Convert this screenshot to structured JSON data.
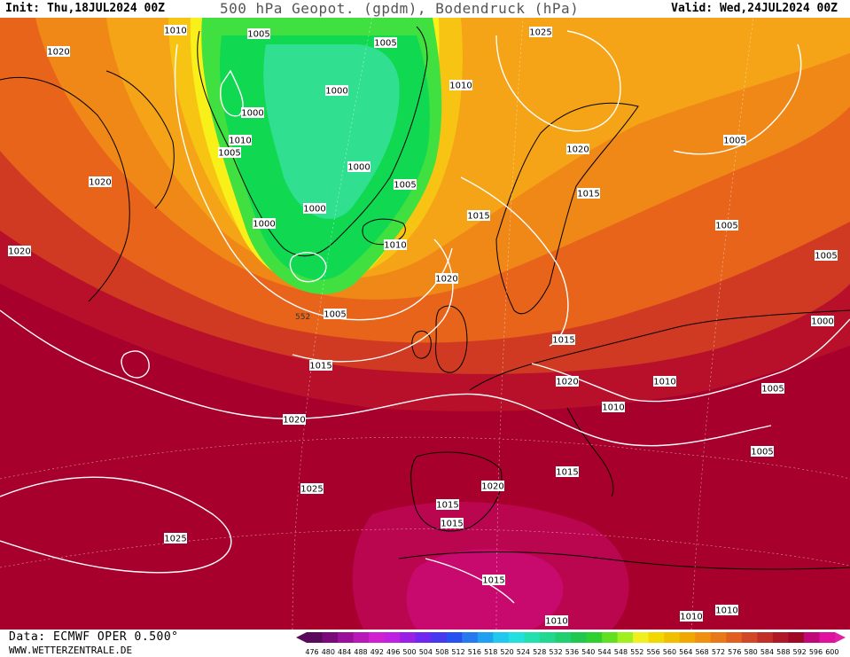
{
  "header": {
    "init": "Init: Thu,18JUL2024 00Z",
    "title": "500 hPa Geopot. (gpdm), Bodendruck (hPa)",
    "valid": "Valid: Wed,24JUL2024 00Z"
  },
  "footer": {
    "data_source": "Data: ECMWF OPER 0.500°",
    "website": "WWW.WETTERZENTRALE.DE"
  },
  "colorbar": {
    "ticks": [
      "476",
      "480",
      "484",
      "488",
      "492",
      "496",
      "500",
      "504",
      "508",
      "512",
      "516",
      "518",
      "520",
      "524",
      "528",
      "532",
      "536",
      "540",
      "544",
      "548",
      "552",
      "556",
      "560",
      "564",
      "568",
      "572",
      "576",
      "580",
      "584",
      "588",
      "592",
      "596",
      "600"
    ],
    "colors": [
      "#5a0a5a",
      "#7a0a7a",
      "#9a109a",
      "#b818b8",
      "#d020d0",
      "#c020e0",
      "#9a20e8",
      "#7028f0",
      "#4838f0",
      "#2850f0",
      "#2878f0",
      "#20a0f0",
      "#20c8f0",
      "#20e0e0",
      "#20e0b0",
      "#20d890",
      "#20d070",
      "#20c850",
      "#30d030",
      "#60e020",
      "#a0f020",
      "#f0f020",
      "#f0d800",
      "#f0c000",
      "#f0a800",
      "#f09010",
      "#e87818",
      "#e06020",
      "#d04828",
      "#c03028",
      "#b01828",
      "#a00828",
      "#c00878",
      "#e010a0"
    ],
    "marker_color": "#e020a0"
  },
  "map": {
    "colors": {
      "deep_south": "#a8002c",
      "south": "#b8102a",
      "mid_red": "#d03a22",
      "orange": "#e8641a",
      "orange_light": "#f08818",
      "amber": "#f4a416",
      "yellow_orange": "#f8c414",
      "yellow": "#f8f018",
      "light_green": "#40e040",
      "green": "#10d850",
      "teal_green": "#30e090",
      "magenta": "#c80a6e",
      "coast": "#000000",
      "isobar": "#ffffff"
    },
    "isobars": [
      {
        "label": "1010"
      },
      {
        "label": "1005"
      },
      {
        "label": "1005"
      },
      {
        "label": "1025"
      },
      {
        "label": "1020"
      },
      {
        "label": "1010"
      },
      {
        "label": "1000"
      },
      {
        "label": "1000"
      },
      {
        "label": "1010"
      },
      {
        "label": "1005"
      },
      {
        "label": "1020"
      },
      {
        "label": "1000"
      },
      {
        "label": "1005"
      },
      {
        "label": "1020"
      },
      {
        "label": "1015"
      },
      {
        "label": "1000"
      },
      {
        "label": "1000"
      },
      {
        "label": "1015"
      },
      {
        "label": "1010"
      },
      {
        "label": "1005"
      },
      {
        "label": "1020"
      },
      {
        "label": "1020"
      },
      {
        "label": "1005"
      },
      {
        "label": "1005"
      },
      {
        "label": "1000"
      },
      {
        "label": "1005"
      },
      {
        "label": "1015"
      },
      {
        "label": "1015"
      },
      {
        "label": "1020"
      },
      {
        "label": "1010"
      },
      {
        "label": "1005"
      },
      {
        "label": "1010"
      },
      {
        "label": "1020"
      },
      {
        "label": "1005"
      },
      {
        "label": "1015"
      },
      {
        "label": "1025"
      },
      {
        "label": "1020"
      },
      {
        "label": "1015"
      },
      {
        "label": "1015"
      },
      {
        "label": "1025"
      },
      {
        "label": "1015"
      },
      {
        "label": "1010"
      },
      {
        "label": "1010"
      },
      {
        "label": "1010"
      }
    ],
    "contour_number": "552"
  }
}
